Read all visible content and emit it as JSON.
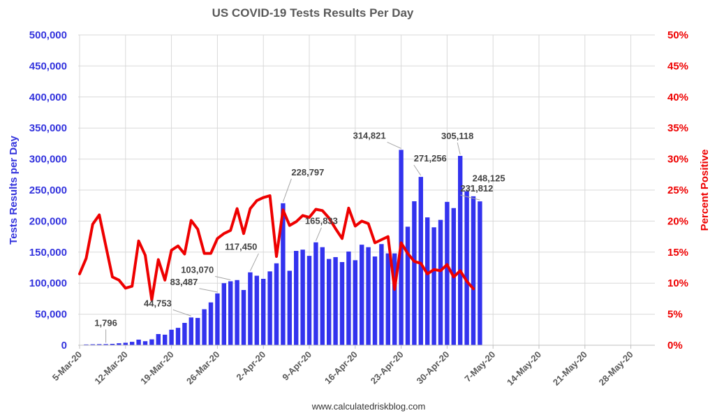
{
  "chart_data": {
    "type": "bar",
    "title": "US COVID-19 Tests Results Per Day",
    "ylabel": "Tests Results per Day",
    "y2label": "Percent Positive",
    "source": "www.calculatedriskblog.com",
    "ylim": [
      0,
      500000
    ],
    "y_ticks": [
      "0",
      "50,000",
      "100,000",
      "150,000",
      "200,000",
      "250,000",
      "300,000",
      "350,000",
      "400,000",
      "450,000",
      "500,000"
    ],
    "y2lim": [
      0,
      50
    ],
    "y2_ticks": [
      "0%",
      "5%",
      "10%",
      "15%",
      "20%",
      "25%",
      "30%",
      "35%",
      "40%",
      "45%",
      "50%"
    ],
    "x_tick_labels": [
      "5-Mar-20",
      "12-Mar-20",
      "19-Mar-20",
      "26-Mar-20",
      "2-Apr-20",
      "9-Apr-20",
      "16-Apr-20",
      "23-Apr-20",
      "30-Apr-20",
      "7-May-20",
      "14-May-20",
      "21-May-20",
      "28-May-20"
    ],
    "grid": true,
    "colors": {
      "bars": "#3333ee",
      "line": "#ee0000",
      "left_axis": "#3333dd",
      "right_axis": "#ee0000",
      "annotation": "#444444"
    },
    "series": [
      {
        "name": "Tests Results per Day",
        "type": "bar",
        "start_date": "6-Mar-20",
        "values": [
          1200,
          1500,
          1700,
          1796,
          2200,
          3200,
          4000,
          5500,
          9000,
          6500,
          9500,
          18000,
          17000,
          25000,
          28000,
          36000,
          44753,
          44000,
          58000,
          69000,
          83487,
          100000,
          103070,
          105000,
          89000,
          117450,
          112000,
          107000,
          119000,
          132000,
          228797,
          120000,
          152000,
          154000,
          144000,
          165833,
          158000,
          139000,
          142000,
          134000,
          151000,
          137000,
          162000,
          158000,
          143000,
          163000,
          148000,
          148000,
          314821,
          191000,
          232000,
          271256,
          206000,
          190000,
          202000,
          231000,
          221000,
          305118,
          248125,
          240000,
          231812
        ]
      },
      {
        "name": "Percent Positive",
        "type": "line",
        "start_date": "5-Mar-20",
        "axis": "right",
        "values": [
          11.5,
          14,
          19.5,
          21,
          16,
          11,
          10.5,
          9.2,
          9.5,
          16.8,
          14.5,
          7.3,
          13.8,
          10.5,
          15.3,
          16,
          14.7,
          20.1,
          18.7,
          14.8,
          14.8,
          17.2,
          18,
          18.5,
          22,
          18,
          22,
          23.3,
          23.8,
          24.1,
          14.3,
          21.8,
          19.3,
          19.9,
          20.9,
          20.6,
          21.9,
          21.7,
          20.5,
          18.8,
          17.2,
          22.1,
          19.2,
          20,
          19.6,
          16.5,
          17,
          17.5,
          9,
          16.5,
          14.8,
          13.5,
          13.2,
          11.5,
          12.2,
          12,
          13,
          11,
          12,
          10.3,
          9.1
        ]
      }
    ],
    "annotations": [
      {
        "label": "1,796",
        "date": "9-Mar-20",
        "value": 1796
      },
      {
        "label": "44,753",
        "date": "22-Mar-20",
        "value": 44753
      },
      {
        "label": "83,487",
        "date": "26-Mar-20",
        "value": 83487
      },
      {
        "label": "103,070",
        "date": "28-Mar-20",
        "value": 103070
      },
      {
        "label": "117,450",
        "date": "31-Mar-20",
        "value": 117450
      },
      {
        "label": "228,797",
        "date": "5-Apr-20",
        "value": 228797
      },
      {
        "label": "165,833",
        "date": "10-Apr-20",
        "value": 165833
      },
      {
        "label": "314,821",
        "date": "23-Apr-20",
        "value": 314821
      },
      {
        "label": "271,256",
        "date": "26-Apr-20",
        "value": 271256
      },
      {
        "label": "305,118",
        "date": "2-May-20",
        "value": 305118
      },
      {
        "label": "248,125",
        "date": "3-May-20",
        "value": 248125
      },
      {
        "label": "231,812",
        "date": "5-May-20",
        "value": 231812
      }
    ]
  }
}
